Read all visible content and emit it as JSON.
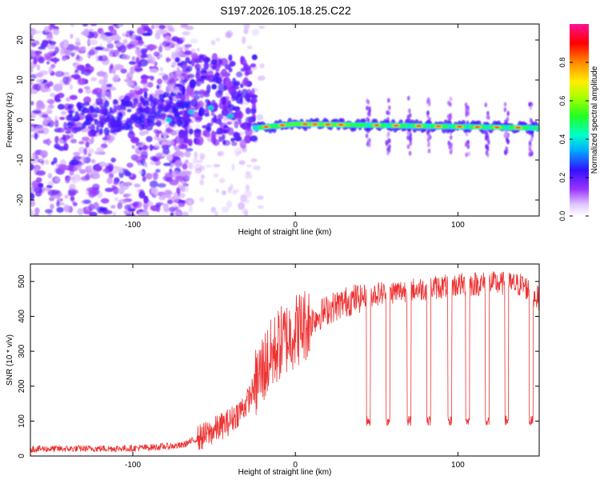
{
  "figure_title": "S197.2026.105.18.25.C22",
  "chart_data": [
    {
      "type": "heatmap",
      "title": "S197.2026.105.18.25.C22",
      "xlabel": "Height of straight line (km)",
      "ylabel": "Frequency (Hz)",
      "xlim": [
        -163,
        150
      ],
      "ylim": [
        -24,
        24
      ],
      "xticks": [
        -100,
        0,
        100
      ],
      "yticks": [
        -20,
        -10,
        0,
        10,
        20
      ],
      "xtick_labels": [
        "-100",
        "0",
        "100"
      ],
      "ytick_labels": [
        "-20",
        "-10",
        "0",
        "10",
        "20"
      ],
      "colorbar": {
        "label": "Normalized spectral amplitude",
        "range": [
          0,
          1
        ],
        "ticks": [
          0.0,
          0.2,
          0.4,
          0.6,
          0.8
        ],
        "tick_labels": [
          "0.0",
          "0.2",
          "0.4",
          "0.6",
          "0.8"
        ]
      },
      "features": {
        "noise_region_x": [
          -163,
          -65
        ],
        "transition_region_x": [
          -70,
          -25
        ],
        "signal_line_start_x": -25,
        "signal_line_freq_at_start_hz": -2,
        "signal_line_freq_at_0_hz": -1,
        "signal_line_freq_at_150_hz": -2,
        "signal_breaks_x": [
          45,
          57,
          70,
          82,
          95,
          106,
          118,
          130,
          145
        ]
      }
    },
    {
      "type": "line",
      "title": "",
      "xlabel": "Height of straight line (km)",
      "ylabel": "SNR (10 * v/v)",
      "xlim": [
        -163,
        150
      ],
      "ylim": [
        0,
        550
      ],
      "xticks": [
        -100,
        0,
        100
      ],
      "yticks": [
        0,
        100,
        200,
        300,
        400,
        500
      ],
      "xtick_labels": [
        "-100",
        "0",
        "100"
      ],
      "ytick_labels": [
        "0",
        "100",
        "200",
        "300",
        "400",
        "500"
      ],
      "series": [
        {
          "name": "SNR",
          "color": "#ee3333",
          "trend_x": [
            -163,
            -100,
            -70,
            -55,
            -40,
            -30,
            -20,
            -10,
            0,
            10,
            20,
            30,
            40,
            50,
            60,
            80,
            100,
            120,
            140,
            150
          ],
          "trend_y": [
            20,
            22,
            30,
            60,
            100,
            150,
            250,
            320,
            360,
            390,
            420,
            440,
            455,
            465,
            470,
            480,
            490,
            495,
            490,
            450
          ],
          "dips_x": [
            45,
            57,
            70,
            82,
            95,
            106,
            118,
            130,
            145
          ],
          "dip_level": 100
        }
      ]
    }
  ]
}
